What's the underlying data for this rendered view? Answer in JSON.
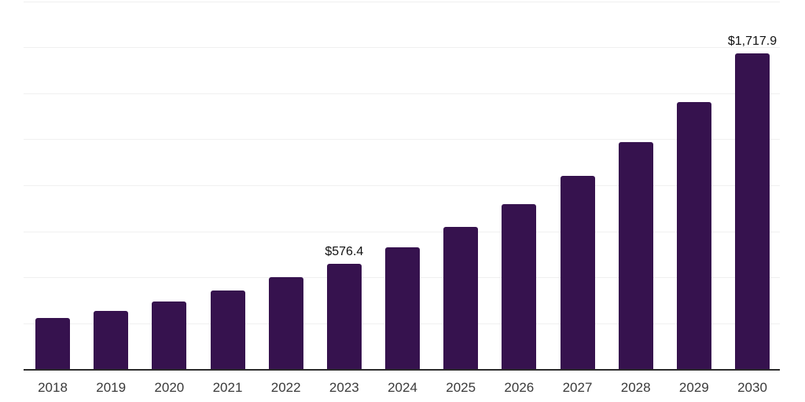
{
  "chart_data": {
    "type": "bar",
    "title": "",
    "xlabel": "",
    "ylabel": "",
    "categories": [
      "2018",
      "2019",
      "2020",
      "2021",
      "2022",
      "2023",
      "2024",
      "2025",
      "2026",
      "2027",
      "2028",
      "2029",
      "2030"
    ],
    "values": [
      281,
      321,
      372,
      429,
      502,
      576.4,
      665,
      776,
      899,
      1052,
      1236,
      1453,
      1717.9
    ],
    "data_labels": [
      "",
      "",
      "",
      "",
      "",
      "$576.4",
      "",
      "",
      "",
      "",
      "",
      "",
      "$1,717.9"
    ],
    "ylim": [
      0,
      2000
    ],
    "gridline_step": 250,
    "grid": true,
    "legend_position": "none",
    "colors": {
      "bar": "#36124e",
      "gridline": "#f0f0f0",
      "axis_line": "#2b2b2b",
      "tick_label": "#3a3a3a",
      "data_label": "#111111",
      "background": "#ffffff"
    }
  }
}
